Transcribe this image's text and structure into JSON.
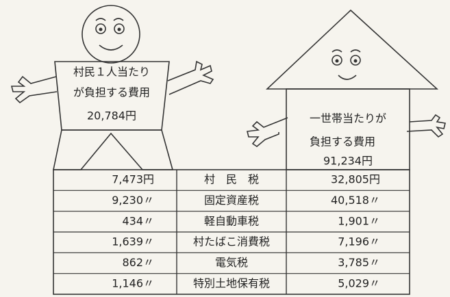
{
  "person": {
    "label": [
      "村民１人当たり",
      "が負担する費用"
    ],
    "amount": "20,784円"
  },
  "house": {
    "label": [
      "一世帯当たりが",
      "負担する費用"
    ],
    "amount": "91,234円"
  },
  "table": {
    "rows": [
      [
        "7,473円",
        "村　民　税",
        "32,805円"
      ],
      [
        "9,230〃",
        "固定資産税",
        "40,518〃"
      ],
      [
        "434〃",
        "軽自動車税",
        "1,901〃"
      ],
      [
        "1,639〃",
        "村たばこ消費税",
        "7,196〃"
      ],
      [
        "862〃",
        "電気税",
        "3,785〃"
      ],
      [
        "1,146〃",
        "特別土地保有税",
        "5,029〃"
      ]
    ]
  }
}
